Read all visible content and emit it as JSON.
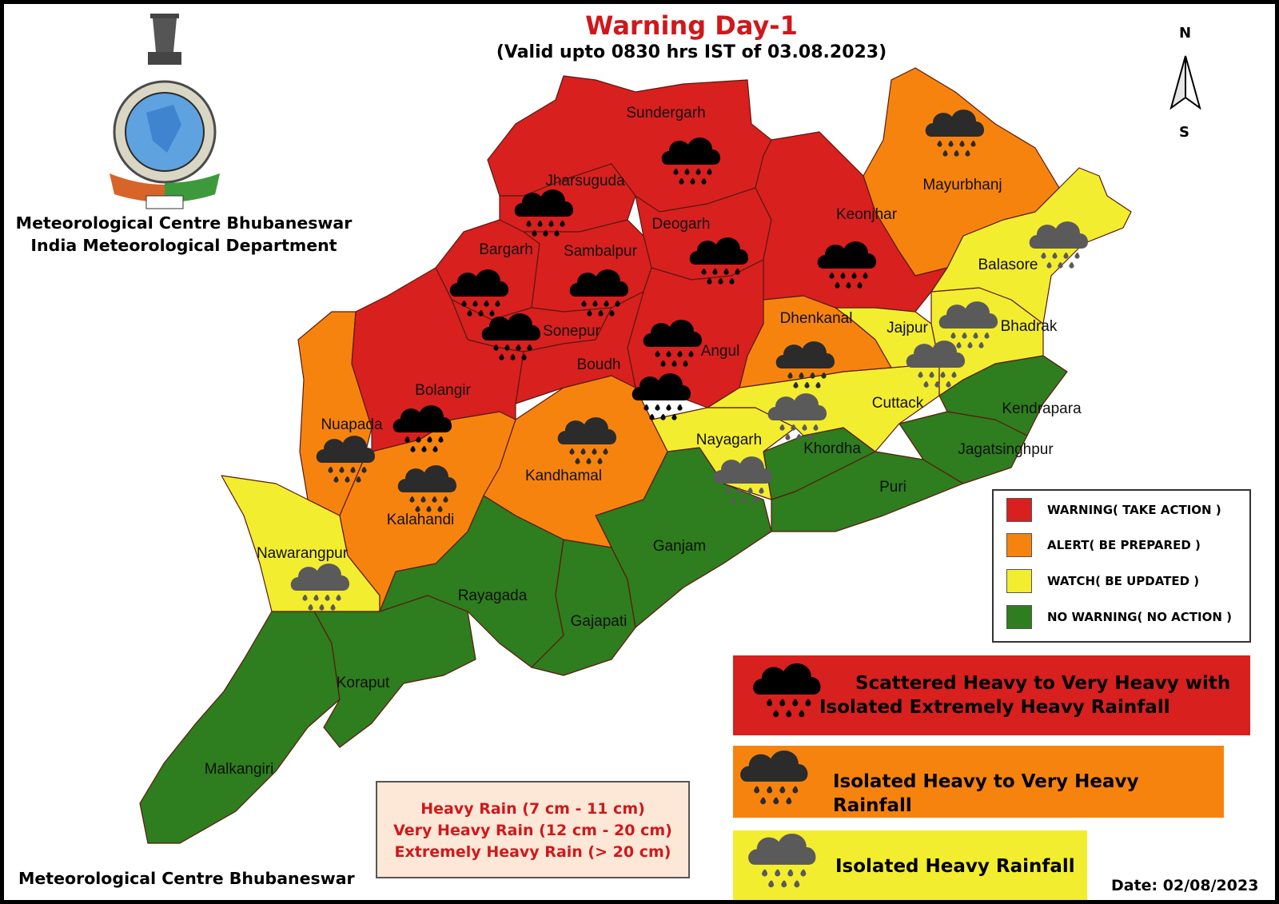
{
  "header": {
    "title": "Warning Day-1",
    "subtitle": "(Valid upto 0830 hrs IST of 03.08.2023)"
  },
  "organization": {
    "line1": "Meteorological Centre Bhubaneswar",
    "line2": "India Meteorological Department",
    "footer": "Meteorological Centre Bhubaneswar"
  },
  "date_label": "Date: 02/08/2023",
  "compass": {
    "north": "N",
    "south": "S"
  },
  "colors": {
    "warning": "#d8201f",
    "alert": "#f7830f",
    "watch": "#f3ed2f",
    "no_warning": "#2e7d1e"
  },
  "legend": [
    {
      "label": "WARNING( TAKE ACTION )",
      "level": "warning"
    },
    {
      "label": "ALERT( BE PREPARED )",
      "level": "alert"
    },
    {
      "label": "WATCH( BE UPDATED )",
      "level": "watch"
    },
    {
      "label": "NO WARNING( NO ACTION )",
      "level": "no_warning"
    }
  ],
  "rain_categories": [
    {
      "icon": "heavy-rain-cloud-icon-black",
      "level": "warning",
      "line1": "Scattered Heavy to Very Heavy with",
      "line2": "Isolated Extremely Heavy Rainfall"
    },
    {
      "icon": "heavy-rain-cloud-icon-dark",
      "level": "alert",
      "line1": "Isolated Heavy to Very Heavy Rainfall",
      "line2": ""
    },
    {
      "icon": "heavy-rain-cloud-icon-grey",
      "level": "watch",
      "line1": "Isolated Heavy Rainfall",
      "line2": ""
    }
  ],
  "rainfall_ranges": [
    "Heavy Rain (7 cm - 11 cm)",
    "Very Heavy Rain (12 cm - 20 cm)",
    "Extremely Heavy Rain (> 20 cm)"
  ],
  "districts": [
    {
      "name": "Sundergarh",
      "level": "warning",
      "icon": "black"
    },
    {
      "name": "Jharsuguda",
      "level": "warning",
      "icon": "black"
    },
    {
      "name": "Deogarh",
      "level": "warning",
      "icon": "black"
    },
    {
      "name": "Keonjhar",
      "level": "warning",
      "icon": "black"
    },
    {
      "name": "Bargarh",
      "level": "warning",
      "icon": "black"
    },
    {
      "name": "Sambalpur",
      "level": "warning",
      "icon": "black"
    },
    {
      "name": "Sonepur",
      "level": "warning",
      "icon": "black"
    },
    {
      "name": "Angul",
      "level": "warning",
      "icon": "black"
    },
    {
      "name": "Boudh",
      "level": "warning",
      "icon": "black"
    },
    {
      "name": "Bolangir",
      "level": "warning",
      "icon": "black"
    },
    {
      "name": "Mayurbhanj",
      "level": "alert",
      "icon": "dark"
    },
    {
      "name": "Dhenkanal",
      "level": "alert",
      "icon": "dark"
    },
    {
      "name": "Nuapada",
      "level": "alert",
      "icon": "dark"
    },
    {
      "name": "Kalahandi",
      "level": "alert",
      "icon": "dark"
    },
    {
      "name": "Kandhamal",
      "level": "alert",
      "icon": "dark"
    },
    {
      "name": "Balasore",
      "level": "watch",
      "icon": "grey"
    },
    {
      "name": "Bhadrak",
      "level": "watch",
      "icon": "grey"
    },
    {
      "name": "Jajpur",
      "level": "watch",
      "icon": "grey"
    },
    {
      "name": "Cuttack",
      "level": "watch",
      "icon": "grey"
    },
    {
      "name": "Nayagarh",
      "level": "watch",
      "icon": "grey"
    },
    {
      "name": "Nawarangpur",
      "level": "watch",
      "icon": "grey"
    },
    {
      "name": "Kendrapara",
      "level": "no_warning",
      "icon": ""
    },
    {
      "name": "Jagatsinghpur",
      "level": "no_warning",
      "icon": ""
    },
    {
      "name": "Khordha",
      "level": "no_warning",
      "icon": ""
    },
    {
      "name": "Puri",
      "level": "no_warning",
      "icon": ""
    },
    {
      "name": "Ganjam",
      "level": "no_warning",
      "icon": ""
    },
    {
      "name": "Rayagada",
      "level": "no_warning",
      "icon": ""
    },
    {
      "name": "Gajapati",
      "level": "no_warning",
      "icon": ""
    },
    {
      "name": "Koraput",
      "level": "no_warning",
      "icon": ""
    },
    {
      "name": "Malkangiri",
      "level": "no_warning",
      "icon": ""
    }
  ]
}
